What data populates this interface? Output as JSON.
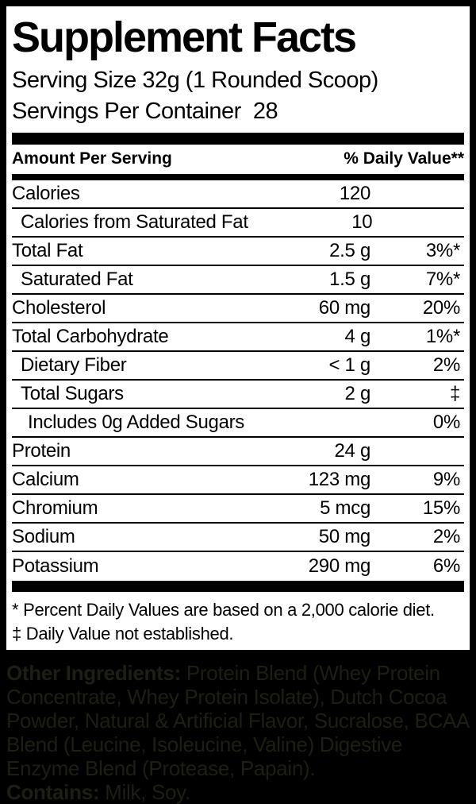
{
  "label": {
    "title": "Supplement Facts",
    "serving_size": "Serving Size 32g (1 Rounded Scoop)",
    "servings_per_container": "Servings Per Container  28",
    "columns": {
      "left": "Amount Per Serving",
      "right": "% Daily Value**"
    },
    "rows": [
      {
        "name": "Calories",
        "amount": "120",
        "dv": "",
        "indent": 0
      },
      {
        "name": "Calories from Saturated Fat",
        "amount": "10",
        "dv": "",
        "indent": 1
      },
      {
        "name": "Total Fat",
        "amount": "2.5 g",
        "dv": "3%*",
        "indent": 0
      },
      {
        "name": "Saturated Fat",
        "amount": "1.5 g",
        "dv": "7%*",
        "indent": 1
      },
      {
        "name": "Cholesterol",
        "amount": "60 mg",
        "dv": "20%",
        "indent": 0
      },
      {
        "name": "Total Carbohydrate",
        "amount": "4 g",
        "dv": "1%*",
        "indent": 0
      },
      {
        "name": "Dietary Fiber",
        "amount": "< 1 g",
        "dv": "2%",
        "indent": 1
      },
      {
        "name": "Total Sugars",
        "amount": "2 g",
        "dv": "‡",
        "indent": 1
      },
      {
        "name": "Includes 0g Added Sugars",
        "amount": "",
        "dv": "0%",
        "indent": 2
      },
      {
        "name": "Protein",
        "amount": "24 g",
        "dv": "",
        "indent": 0
      },
      {
        "name": "Calcium",
        "amount": "123 mg",
        "dv": "9%",
        "indent": 0
      },
      {
        "name": "Chromium",
        "amount": "5 mcg",
        "dv": "15%",
        "indent": 0
      },
      {
        "name": "Sodium",
        "amount": "50 mg",
        "dv": "2%",
        "indent": 0
      },
      {
        "name": "Potassium",
        "amount": "290 mg",
        "dv": "6%",
        "indent": 0
      }
    ],
    "footnotes": [
      "* Percent Daily Values are based on a 2,000 calorie diet.",
      "‡ Daily Value not established."
    ]
  },
  "ingredients": {
    "other_label": "Other Ingredients:",
    "other_text": " Protein Blend (Whey Protein Concentrate, Whey Protein Isolate), Dutch Cocoa Powder, Natural & Artificial Flavor, Sucralose, BCAA Blend (Leucine, Isoleucine, Valine) Digestive Enzyme Blend (Protease, Papain).",
    "contains_label": "Contains:",
    "contains_text": " Milk, Soy."
  },
  "colors": {
    "panel_background": "#ffffff",
    "label_text": "#000000",
    "outer_background": "#000000",
    "ingredients_text": "#1e1e14"
  }
}
